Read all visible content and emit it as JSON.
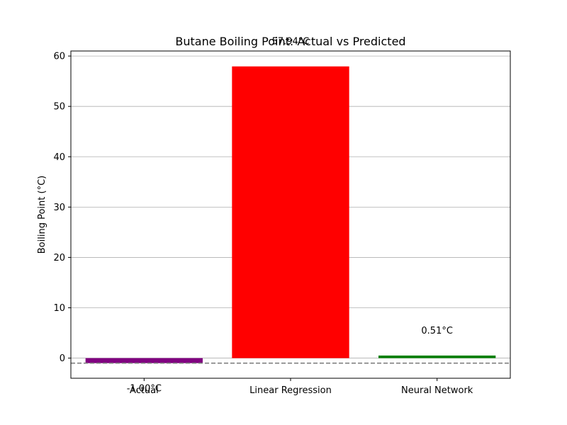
{
  "chart_data": {
    "type": "bar",
    "title": "Butane Boiling Point: Actual vs Predicted",
    "xlabel": "",
    "ylabel": "Boiling Point (°C)",
    "categories": [
      "Actual",
      "Linear Regression",
      "Neural Network"
    ],
    "values": [
      -1.0,
      57.94,
      0.51
    ],
    "value_labels": [
      "-1.00°C",
      "57.94°C",
      "0.51°C"
    ],
    "colors": [
      "#800080",
      "#ff0000",
      "#008000"
    ],
    "ylim": [
      -4,
      61
    ],
    "yticks": [
      0,
      10,
      20,
      30,
      40,
      50,
      60
    ],
    "reference_line": {
      "y": -1.0,
      "style": "dashed",
      "color": "#808080"
    },
    "grid": {
      "y": true,
      "x": false
    },
    "legend": "none"
  }
}
